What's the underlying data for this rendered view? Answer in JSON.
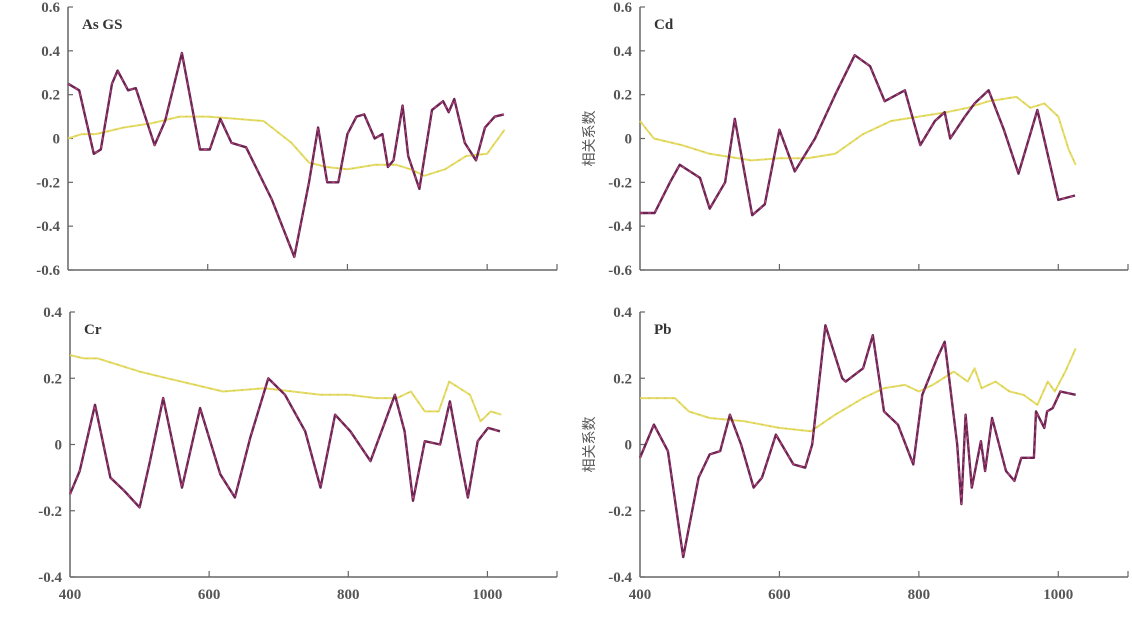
{
  "chart_data": [
    {
      "type": "line",
      "title": "As GS",
      "ylabel": "",
      "xlim": [
        400,
        1100
      ],
      "ylim": [
        -0.6,
        0.6
      ],
      "yticks": [
        "0.6",
        "0.4",
        "0.2",
        "0",
        "-0.2",
        "-0.4",
        "-0.6"
      ],
      "xticks": [],
      "series": [
        {
          "color": "#6b2352",
          "x": [
            400,
            416,
            437,
            447,
            463,
            471,
            486,
            497,
            524,
            539,
            563,
            589,
            603,
            618,
            634,
            655,
            692,
            724,
            745,
            758,
            771,
            787,
            800,
            813,
            824,
            839,
            850,
            858,
            866,
            879,
            887,
            903,
            921,
            937,
            945,
            953,
            968,
            984,
            997,
            1011,
            1024
          ],
          "y": [
            0.25,
            0.22,
            -0.07,
            -0.05,
            0.25,
            0.31,
            0.22,
            0.23,
            -0.03,
            0.08,
            0.39,
            -0.05,
            -0.05,
            0.09,
            -0.02,
            -0.04,
            -0.28,
            -0.54,
            -0.2,
            0.05,
            -0.2,
            -0.2,
            0.02,
            0.1,
            0.11,
            0.0,
            0.02,
            -0.13,
            -0.1,
            0.15,
            -0.08,
            -0.23,
            0.13,
            0.17,
            0.12,
            0.18,
            -0.02,
            -0.1,
            0.05,
            0.1,
            0.11
          ]
        },
        {
          "color": "#e4dc6a",
          "x": [
            400,
            420,
            440,
            480,
            520,
            560,
            600,
            640,
            680,
            720,
            745,
            770,
            800,
            840,
            870,
            890,
            910,
            940,
            970,
            1000,
            1025
          ],
          "y": [
            0.0,
            0.02,
            0.02,
            0.05,
            0.07,
            0.1,
            0.1,
            0.09,
            0.08,
            -0.02,
            -0.11,
            -0.13,
            -0.14,
            -0.12,
            -0.12,
            -0.14,
            -0.17,
            -0.14,
            -0.08,
            -0.07,
            0.04
          ]
        }
      ]
    },
    {
      "type": "line",
      "title": "Cd",
      "ylabel": "相关系数",
      "xlim": [
        400,
        1100
      ],
      "ylim": [
        -0.6,
        0.6
      ],
      "yticks": [
        "0.6",
        "0.4",
        "0.2",
        "0",
        "-0.2",
        "-0.4",
        "-0.6"
      ],
      "xticks": [],
      "series": [
        {
          "color": "#6b2352",
          "x": [
            400,
            421,
            443,
            457,
            486,
            500,
            522,
            536,
            561,
            579,
            600,
            622,
            651,
            680,
            708,
            730,
            751,
            780,
            802,
            823,
            837,
            845,
            866,
            880,
            900,
            922,
            943,
            970,
            1000,
            1024
          ],
          "y": [
            -0.34,
            -0.34,
            -0.2,
            -0.12,
            -0.18,
            -0.32,
            -0.2,
            0.09,
            -0.35,
            -0.3,
            0.04,
            -0.15,
            0.0,
            0.2,
            0.38,
            0.33,
            0.17,
            0.22,
            -0.03,
            0.08,
            0.12,
            0.0,
            0.1,
            0.16,
            0.22,
            0.04,
            -0.16,
            0.13,
            -0.28,
            -0.26
          ]
        },
        {
          "color": "#e4dc6a",
          "x": [
            400,
            420,
            460,
            500,
            520,
            560,
            600,
            640,
            680,
            720,
            760,
            800,
            840,
            870,
            900,
            940,
            960,
            980,
            1000,
            1015,
            1025
          ],
          "y": [
            0.08,
            0.0,
            -0.03,
            -0.07,
            -0.08,
            -0.1,
            -0.09,
            -0.09,
            -0.07,
            0.02,
            0.08,
            0.1,
            0.12,
            0.14,
            0.17,
            0.19,
            0.14,
            0.16,
            0.1,
            -0.05,
            -0.12
          ]
        }
      ]
    },
    {
      "type": "line",
      "title": "Cr",
      "ylabel": "",
      "xlim": [
        400,
        1100
      ],
      "ylim": [
        -0.4,
        0.4
      ],
      "yticks": [
        "0.4",
        "0.2",
        "0",
        "-0.2",
        "-0.4"
      ],
      "xticks": [
        "400",
        "600",
        "800",
        "1000"
      ],
      "series": [
        {
          "color": "#6b2352",
          "x": [
            400,
            414,
            436,
            458,
            478,
            500,
            515,
            534,
            561,
            587,
            616,
            637,
            659,
            685,
            709,
            738,
            760,
            781,
            803,
            832,
            853,
            867,
            881,
            893,
            910,
            932,
            946,
            960,
            972,
            986,
            1001,
            1018
          ],
          "y": [
            -0.15,
            -0.08,
            0.12,
            -0.1,
            -0.14,
            -0.19,
            -0.05,
            0.14,
            -0.13,
            0.11,
            -0.09,
            -0.16,
            0.02,
            0.2,
            0.15,
            0.04,
            -0.13,
            0.09,
            0.04,
            -0.05,
            0.07,
            0.15,
            0.04,
            -0.17,
            0.01,
            0.0,
            0.13,
            -0.03,
            -0.16,
            0.01,
            0.05,
            0.04
          ]
        },
        {
          "color": "#e4dc6a",
          "x": [
            400,
            420,
            440,
            470,
            500,
            540,
            580,
            620,
            680,
            720,
            760,
            800,
            840,
            870,
            890,
            910,
            930,
            945,
            960,
            975,
            990,
            1005,
            1020
          ],
          "y": [
            0.27,
            0.26,
            0.26,
            0.24,
            0.22,
            0.2,
            0.18,
            0.16,
            0.17,
            0.16,
            0.15,
            0.15,
            0.14,
            0.14,
            0.16,
            0.1,
            0.1,
            0.19,
            0.17,
            0.15,
            0.07,
            0.1,
            0.09
          ]
        }
      ]
    },
    {
      "type": "line",
      "title": "Pb",
      "ylabel": "相关系数",
      "xlim": [
        400,
        1100
      ],
      "ylim": [
        -0.4,
        0.4
      ],
      "yticks": [
        "0.4",
        "0.2",
        "0",
        "-0.2",
        "-0.4"
      ],
      "xticks": [
        "400",
        "600",
        "800",
        "1000"
      ],
      "series": [
        {
          "color": "#6b2352",
          "x": [
            400,
            420,
            440,
            462,
            484,
            500,
            515,
            529,
            545,
            563,
            575,
            595,
            620,
            637,
            647,
            666,
            690,
            695,
            720,
            734,
            750,
            770,
            792,
            805,
            826,
            837,
            855,
            861,
            867,
            876,
            889,
            895,
            905,
            925,
            937,
            947,
            965,
            968,
            980,
            984,
            992,
            1003,
            1025
          ],
          "y": [
            -0.04,
            0.06,
            -0.02,
            -0.34,
            -0.1,
            -0.03,
            -0.02,
            0.09,
            0.0,
            -0.13,
            -0.1,
            0.03,
            -0.06,
            -0.07,
            0.0,
            0.36,
            0.2,
            0.19,
            0.23,
            0.33,
            0.1,
            0.06,
            -0.06,
            0.15,
            0.26,
            0.31,
            0.0,
            -0.18,
            0.09,
            -0.13,
            0.01,
            -0.08,
            0.08,
            -0.08,
            -0.11,
            -0.04,
            -0.04,
            0.1,
            0.05,
            0.1,
            0.11,
            0.16,
            0.15
          ]
        },
        {
          "color": "#e4dc6a",
          "x": [
            400,
            450,
            470,
            500,
            550,
            600,
            645,
            680,
            720,
            750,
            780,
            800,
            820,
            850,
            870,
            880,
            890,
            910,
            930,
            950,
            970,
            985,
            995,
            1010,
            1025
          ],
          "y": [
            0.14,
            0.14,
            0.1,
            0.08,
            0.07,
            0.05,
            0.04,
            0.09,
            0.14,
            0.17,
            0.18,
            0.16,
            0.18,
            0.22,
            0.19,
            0.23,
            0.17,
            0.19,
            0.16,
            0.15,
            0.12,
            0.19,
            0.16,
            0.22,
            0.29
          ]
        }
      ]
    }
  ]
}
